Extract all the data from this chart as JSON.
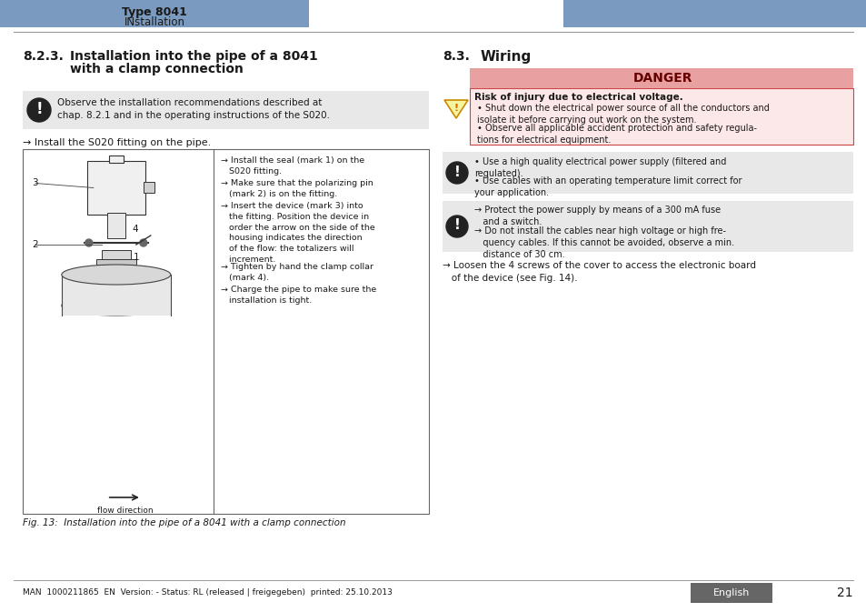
{
  "page_bg": "#ffffff",
  "header_bar_color": "#7a9bbf",
  "header_text_left": "Type 8041",
  "header_subtext_left": "INstallation",
  "section_left_title": "8.2.3. Installation into the pipe of a 8041\n       with a clamp connection",
  "notice_bg": "#e8e8e8",
  "notice_text": "Observe the installation recommendations described at\nchap. 8.2.1 and in the operating instructions of the S020.",
  "arrow_install": "→ Install the S020 fitting on the pipe.",
  "fig_caption": "Fig. 13:  Installation into the pipe of a 8041 with a clamp connection",
  "steps_right": [
    "→ Install the seal (mark 1) on the\n   S020 fitting.",
    "→ Make sure that the polarizing pin\n   (mark 2) is on the fitting.",
    "→ Insert the device (mark 3) into\n   the fitting. Position the device in\n   order the arrow on the side of the\n   housing indicates the direction\n   of the flow: the totalizers will\n   increment.",
    "→ Tighten by hand the clamp collar\n   (mark 4).",
    "→ Charge the pipe to make sure the\n   installation is tight."
  ],
  "section_right_title": "8.3. Wiring",
  "danger_header": "DANGER",
  "danger_header_bg": "#e8a0a0",
  "danger_bg": "#f5c0c0",
  "danger_bold": "Risk of injury due to electrical voltage.",
  "danger_bullets": [
    "Shut down the electrical power source of all the conductors and\nisolate it before carrying out work on the system.",
    "Observe all applicable accident protection and safety regula-\ntions for electrical equipment."
  ],
  "notice2_bg": "#e8e8e8",
  "notice2_bullets": [
    "Use a high quality electrical power supply (filtered and\nregulated).",
    "Use cables with an operating temperature limit correct for\nyour application."
  ],
  "notice3_bg": "#e8e8e8",
  "notice3_items": [
    "→ Protect the power supply by means of a 300 mA fuse\n   and a switch.",
    "→ Do not install the cables near high voltage or high fre-\n   quency cables. If this cannot be avoided, observe a min.\n   distance of 30 cm."
  ],
  "loosen_text": "→ Loosen the 4 screws of the cover to access the electronic board\n   of the device (see Fig. 14).",
  "footer_text": "MAN  1000211865  EN  Version: - Status: RL (released | freigegeben)  printed: 25.10.2013",
  "footer_lang_bg": "#666666",
  "footer_lang_text": "English",
  "footer_page": "21",
  "line_color": "#cccccc",
  "text_color": "#1a1a1a",
  "burkert_color": "#7a9bbf"
}
